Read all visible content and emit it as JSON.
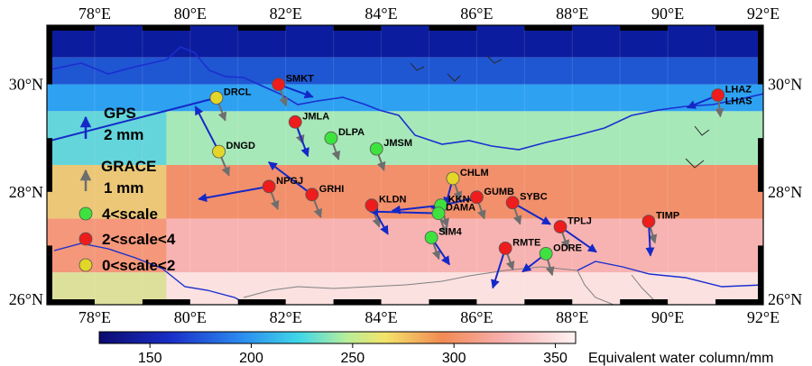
{
  "map": {
    "lon_range": [
      77,
      92
    ],
    "lat_range": [
      25.9,
      31.1
    ],
    "lon_ticks": [
      {
        "value": 78,
        "label": "78°E"
      },
      {
        "value": 80,
        "label": "80°E"
      },
      {
        "value": 82,
        "label": "82°E"
      },
      {
        "value": 84,
        "label": "84°E"
      },
      {
        "value": 86,
        "label": "86°E"
      },
      {
        "value": 88,
        "label": "88°E"
      },
      {
        "value": 90,
        "label": "90°E"
      },
      {
        "value": 92,
        "label": "92°E"
      }
    ],
    "lat_ticks": [
      {
        "value": 30,
        "label": "30°N"
      },
      {
        "value": 28,
        "label": "28°N"
      },
      {
        "value": 26,
        "label": "26°N"
      }
    ],
    "colorbar": {
      "label": "Equivalent water column/mm",
      "range": [
        125,
        360
      ],
      "ticks": [
        150,
        200,
        250,
        300,
        350
      ]
    },
    "grid_colors": {
      "rows": [
        {
          "lat_top": 31.1,
          "lat_bottom": 30.5,
          "color": "#0c1c9e"
        },
        {
          "lat_top": 30.5,
          "lat_bottom": 30.0,
          "color": "#1f56d2"
        },
        {
          "lat_top": 30.0,
          "lat_bottom": 29.5,
          "color": "#2ea1f1"
        },
        {
          "lat_top": 29.5,
          "lat_bottom": 28.5,
          "color": "#a7e8b8",
          "edge_color": "#52cfe4"
        },
        {
          "lat_top": 28.5,
          "lat_bottom": 27.5,
          "color": "#f2906c",
          "edge_color": "#e8d47a"
        },
        {
          "lat_top": 27.5,
          "lat_bottom": 26.5,
          "color": "#f7b3b2",
          "edge_color": "#f2906c"
        },
        {
          "lat_top": 26.5,
          "lat_bottom": 25.9,
          "color": "#fbe1e0",
          "edge_color": "#d4e08a"
        }
      ]
    },
    "legend": {
      "gps_label": "GPS",
      "gps_scale": "2 mm",
      "grace_label": "GRACE",
      "grace_scale": "1 mm",
      "class_high": "4<scale",
      "class_mid": "2<scale<4",
      "class_low": "0<scale<2",
      "gps_color": "#1428c8",
      "grace_color": "#6e6e6e",
      "color_high": "#3ee23e",
      "color_mid": "#ee1c1c",
      "color_low": "#e3d628"
    },
    "stations": [
      {
        "name": "DRCL",
        "lon": 80.55,
        "lat": 29.75,
        "class": "low",
        "gps": [
          -6.0,
          -1.55
        ],
        "grace": [
          0.35,
          -0.9
        ]
      },
      {
        "name": "SMKT",
        "lon": 81.85,
        "lat": 30.0,
        "class": "mid",
        "gps": [
          0.95,
          -0.35
        ],
        "grace": [
          0.3,
          -0.85
        ]
      },
      {
        "name": "JMLA",
        "lon": 82.2,
        "lat": 29.3,
        "class": "mid",
        "gps": [
          0.35,
          -0.95
        ],
        "grace": [
          0.3,
          -0.85
        ]
      },
      {
        "name": "DLPA",
        "lon": 82.95,
        "lat": 29.0,
        "class": "high",
        "gps": [
          0.0,
          0.0
        ],
        "grace": [
          0.3,
          -0.85
        ]
      },
      {
        "name": "JMSM",
        "lon": 83.9,
        "lat": 28.8,
        "class": "high",
        "gps": [
          0.0,
          0.0
        ],
        "grace": [
          0.3,
          -0.85
        ]
      },
      {
        "name": "DNGD",
        "lon": 80.6,
        "lat": 28.75,
        "class": "low",
        "gps": [
          -0.65,
          1.25
        ],
        "grace": [
          0.4,
          -0.95
        ]
      },
      {
        "name": "NPGJ",
        "lon": 81.65,
        "lat": 28.1,
        "class": "mid",
        "gps": [
          -1.95,
          -0.35
        ],
        "grace": [
          0.35,
          -0.9
        ]
      },
      {
        "name": "GRHI",
        "lon": 82.55,
        "lat": 27.95,
        "class": "mid",
        "gps": [
          -1.2,
          0.9
        ],
        "grace": [
          0.35,
          -0.9
        ]
      },
      {
        "name": "KLDN",
        "lon": 83.8,
        "lat": 27.75,
        "class": "mid",
        "gps": [
          0.45,
          -0.8
        ],
        "grace": [
          0.3,
          -0.85
        ]
      },
      {
        "name": "CHLM",
        "lon": 85.5,
        "lat": 28.25,
        "class": "low",
        "gps": [
          -0.2,
          -0.75
        ],
        "grace": [
          0.3,
          -0.85
        ]
      },
      {
        "name": "KKN4",
        "lon": 85.25,
        "lat": 27.75,
        "class": "high",
        "gps": [
          -1.35,
          -0.15
        ],
        "grace": [
          0.25,
          -0.85
        ]
      },
      {
        "name": "DAMA",
        "lon": 85.2,
        "lat": 27.6,
        "class": "high",
        "gps": [
          -1.9,
          0.05
        ],
        "grace": [
          0.3,
          -0.85
        ]
      },
      {
        "name": "GUMB",
        "lon": 86.0,
        "lat": 27.9,
        "class": "mid",
        "gps": [
          -1.25,
          -0.3
        ],
        "grace": [
          0.3,
          -0.85
        ]
      },
      {
        "name": "SYBC",
        "lon": 86.75,
        "lat": 27.8,
        "class": "mid",
        "gps": [
          1.05,
          -0.6
        ],
        "grace": [
          0.3,
          -0.85
        ]
      },
      {
        "name": "SIM4",
        "lon": 85.05,
        "lat": 27.15,
        "class": "high",
        "gps": [
          0.5,
          -0.75
        ],
        "grace": [
          0.3,
          -0.85
        ]
      },
      {
        "name": "RMTE",
        "lon": 86.6,
        "lat": 26.95,
        "class": "mid",
        "gps": [
          -0.35,
          -1.1
        ],
        "grace": [
          0.3,
          -0.85
        ]
      },
      {
        "name": "ODRE",
        "lon": 87.45,
        "lat": 26.85,
        "class": "high",
        "gps": [
          -0.65,
          -0.5
        ],
        "grace": [
          0.25,
          -0.85
        ]
      },
      {
        "name": "TPLJ",
        "lon": 87.75,
        "lat": 27.35,
        "class": "mid",
        "gps": [
          1.0,
          -0.7
        ],
        "grace": [
          0.3,
          -0.85
        ]
      },
      {
        "name": "TIMP",
        "lon": 89.6,
        "lat": 27.45,
        "class": "mid",
        "gps": [
          0.05,
          -0.95
        ],
        "grace": [
          0.25,
          -0.85
        ]
      },
      {
        "name": "LHAZ",
        "lon": 91.05,
        "lat": 29.8,
        "class": "mid",
        "gps": [
          -0.85,
          -0.35
        ],
        "grace": [
          0.1,
          -0.85
        ]
      }
    ],
    "extra_labels": [
      {
        "name": "LHAS",
        "near": "LHAZ"
      }
    ]
  }
}
